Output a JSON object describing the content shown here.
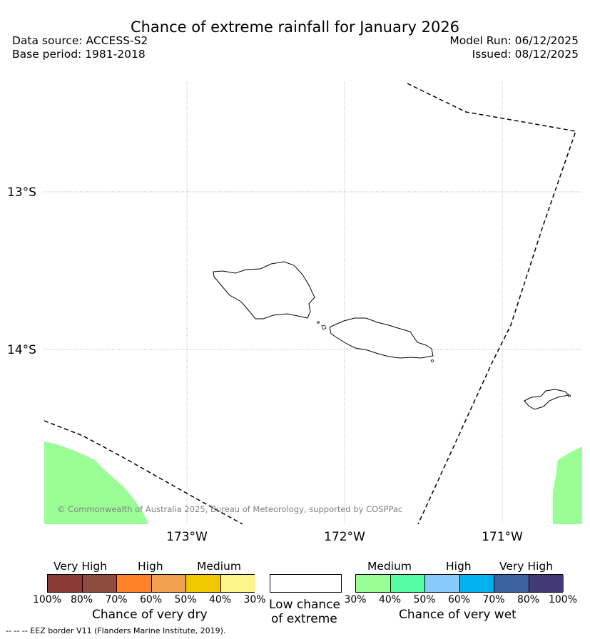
{
  "header": {
    "title": "Chance of extreme rainfall for January 2026",
    "data_source": "Data source: ACCESS-S2",
    "base_period": "Base period: 1981-2018",
    "model_run": "Model Run: 06/12/2025",
    "issued": "Issued: 08/12/2025"
  },
  "map": {
    "lat_labels": [
      "13°S",
      "14°S"
    ],
    "lon_labels": [
      "173°W",
      "172°W",
      "171°W"
    ],
    "copyright": "© Commonwealth of Australia 2025, Bureau of Meteorology, supported by COSPPac",
    "colors": {
      "very_wet_30_40": "#9bfd95",
      "coast": "#000000",
      "eez": "#000000"
    }
  },
  "legend": {
    "dry": {
      "categories": [
        "Very High",
        "High",
        "Medium"
      ],
      "ticks": [
        "100%",
        "80%",
        "70%",
        "60%",
        "50%",
        "40%",
        "30%"
      ],
      "title": "Chance of very dry",
      "colors": [
        "#8b3a34",
        "#8d4c3e",
        "#ff8126",
        "#f09f4e",
        "#f0c800",
        "#fdf489"
      ]
    },
    "low": {
      "line1": "Low chance",
      "line2": "of extreme"
    },
    "wet": {
      "categories": [
        "Medium",
        "High",
        "Very High"
      ],
      "ticks": [
        "30%",
        "40%",
        "50%",
        "60%",
        "70%",
        "80%",
        "100%"
      ],
      "title": "Chance of very wet",
      "colors": [
        "#9bfd95",
        "#56fda5",
        "#87cbfa",
        "#00b2ee",
        "#3a62a0",
        "#433976"
      ]
    }
  },
  "footer": {
    "eez_note": "--  --  -- EEZ border V11 (Flanders Marine Institute, 2019)."
  }
}
